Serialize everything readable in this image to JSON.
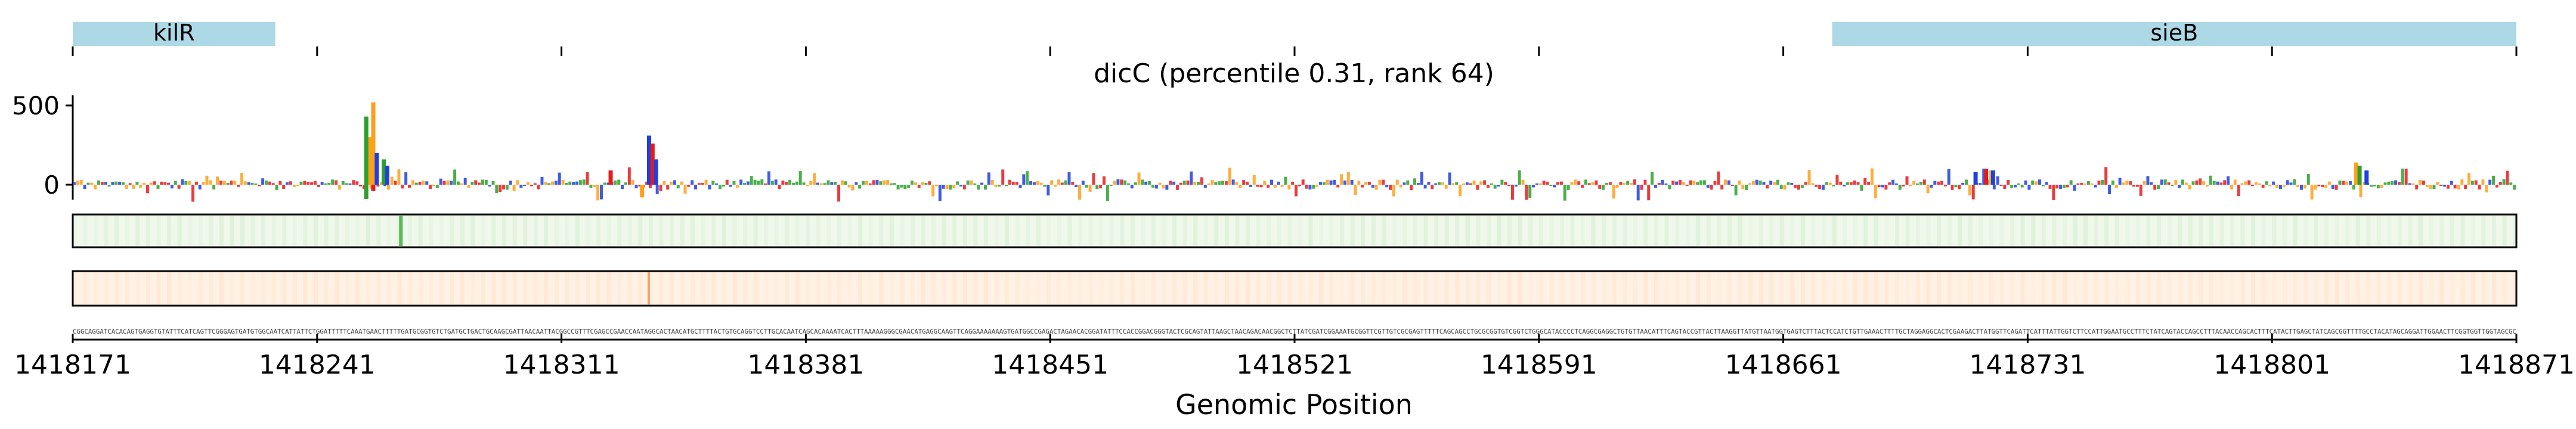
{
  "chart_data": {
    "type": "line",
    "title": "dicC (percentile 0.31, rank 64)",
    "xlabel": "Genomic Position",
    "ylabel": "",
    "xlim": [
      1418171,
      1418871
    ],
    "ylim": [
      -100,
      520
    ],
    "x_ticks": [
      1418171,
      1418241,
      1418311,
      1418381,
      1418451,
      1418521,
      1418591,
      1418661,
      1418731,
      1418801,
      1418871
    ],
    "x_tick_labels": [
      "1418171",
      "1418241",
      "1418311",
      "1418381",
      "1418451",
      "1418521",
      "1418591",
      "1418661",
      "1418731",
      "1418801",
      "1418871"
    ],
    "y_ticks": [
      0,
      500
    ],
    "y_tick_labels": [
      "0",
      "500"
    ],
    "genes": [
      {
        "name": "kilR",
        "start": 1418171,
        "end": 1418229
      },
      {
        "name": "sieB",
        "start": 1418675,
        "end": 1418871
      }
    ],
    "nucleotide_colors": {
      "A": "#2ca02c",
      "C": "#1f3fe0",
      "G": "#ff9f1a",
      "T": "#e41a1c"
    },
    "attribution_peaks": [
      {
        "position": 1418256,
        "value": 300,
        "base": "G"
      },
      {
        "position": 1418257,
        "value": 520,
        "base": "G"
      },
      {
        "position": 1418255,
        "value": 430,
        "base": "A"
      },
      {
        "position": 1418255,
        "value": -90,
        "base": "A"
      },
      {
        "position": 1418257,
        "value": -40,
        "base": "T"
      },
      {
        "position": 1418258,
        "value": 200,
        "base": "C"
      },
      {
        "position": 1418260,
        "value": 160,
        "base": "A"
      },
      {
        "position": 1418261,
        "value": 120,
        "base": "C"
      },
      {
        "position": 1418336,
        "value": 310,
        "base": "C"
      },
      {
        "position": 1418337,
        "value": 260,
        "base": "T"
      },
      {
        "position": 1418338,
        "value": 160,
        "base": "C"
      },
      {
        "position": 1418334,
        "value": -80,
        "base": "G"
      },
      {
        "position": 1418325,
        "value": 90,
        "base": "T"
      },
      {
        "position": 1418716,
        "value": 80,
        "base": "C"
      },
      {
        "position": 1418719,
        "value": 100,
        "base": "T"
      },
      {
        "position": 1418721,
        "value": 90,
        "base": "C"
      },
      {
        "position": 1418825,
        "value": 140,
        "base": "G"
      },
      {
        "position": 1418826,
        "value": 120,
        "base": "A"
      },
      {
        "position": 1418828,
        "value": 90,
        "base": "C"
      }
    ],
    "track_green_peak_position": 1418265,
    "track_green_peak_value": 1.0,
    "track_orange_peak_position": 1418336,
    "track_orange_peak_value": 1.0,
    "sequence": "CGGCAGGATCACACAGTGAGGTGTATTTCATCAGTTCGGGAGTGATGTGGCAATCATTATTCTGGATTTTTCAAATGAACTTTTTGATGCGGTGTCTGATGCTGACTGCAAGCGATTAACAATTACGGCCGTTTCGAGCCGAACCAATAGGCACTAACATGCTTTTACTGTGCAGGTCCTTGCACAATCAGCACAAAATCACTTTAAAAAGGGCGAACATGAGGCAAGTTCAGGAAAAAAAGTGATGGCCGAGACTAGAACACGGATATTTCCACCGGACGGGTACTCGCAGTATTAAGCTAACAGACAACGGCTCTTATCGATCGGAAATGCGGTTCGTTGTCGCGAGTTTTTCAGCAGCCTGCGCGGTGTCGGTCTGGGCATACCCCTCAGGCGAGGCTGTGTTAACATTTCAGTACCGTTACTTAAGGTTATGTTAATGGTGAGTCTTTACTCCATCTGTTGAAACTTTTGCTAGGAGGCACTCGAAGACTTATGGTTCAGATTCATTTATTGGTCTTCCATTGGAATGCCTTTCTATCAGTACCAGCCTTTACAACCAGCACTTTCATACTTGAGCTATCAGCGGTTTTGCCTACATAGCAGGATTGGAACTTCGGTGGTTGGTAGCGC"
  }
}
